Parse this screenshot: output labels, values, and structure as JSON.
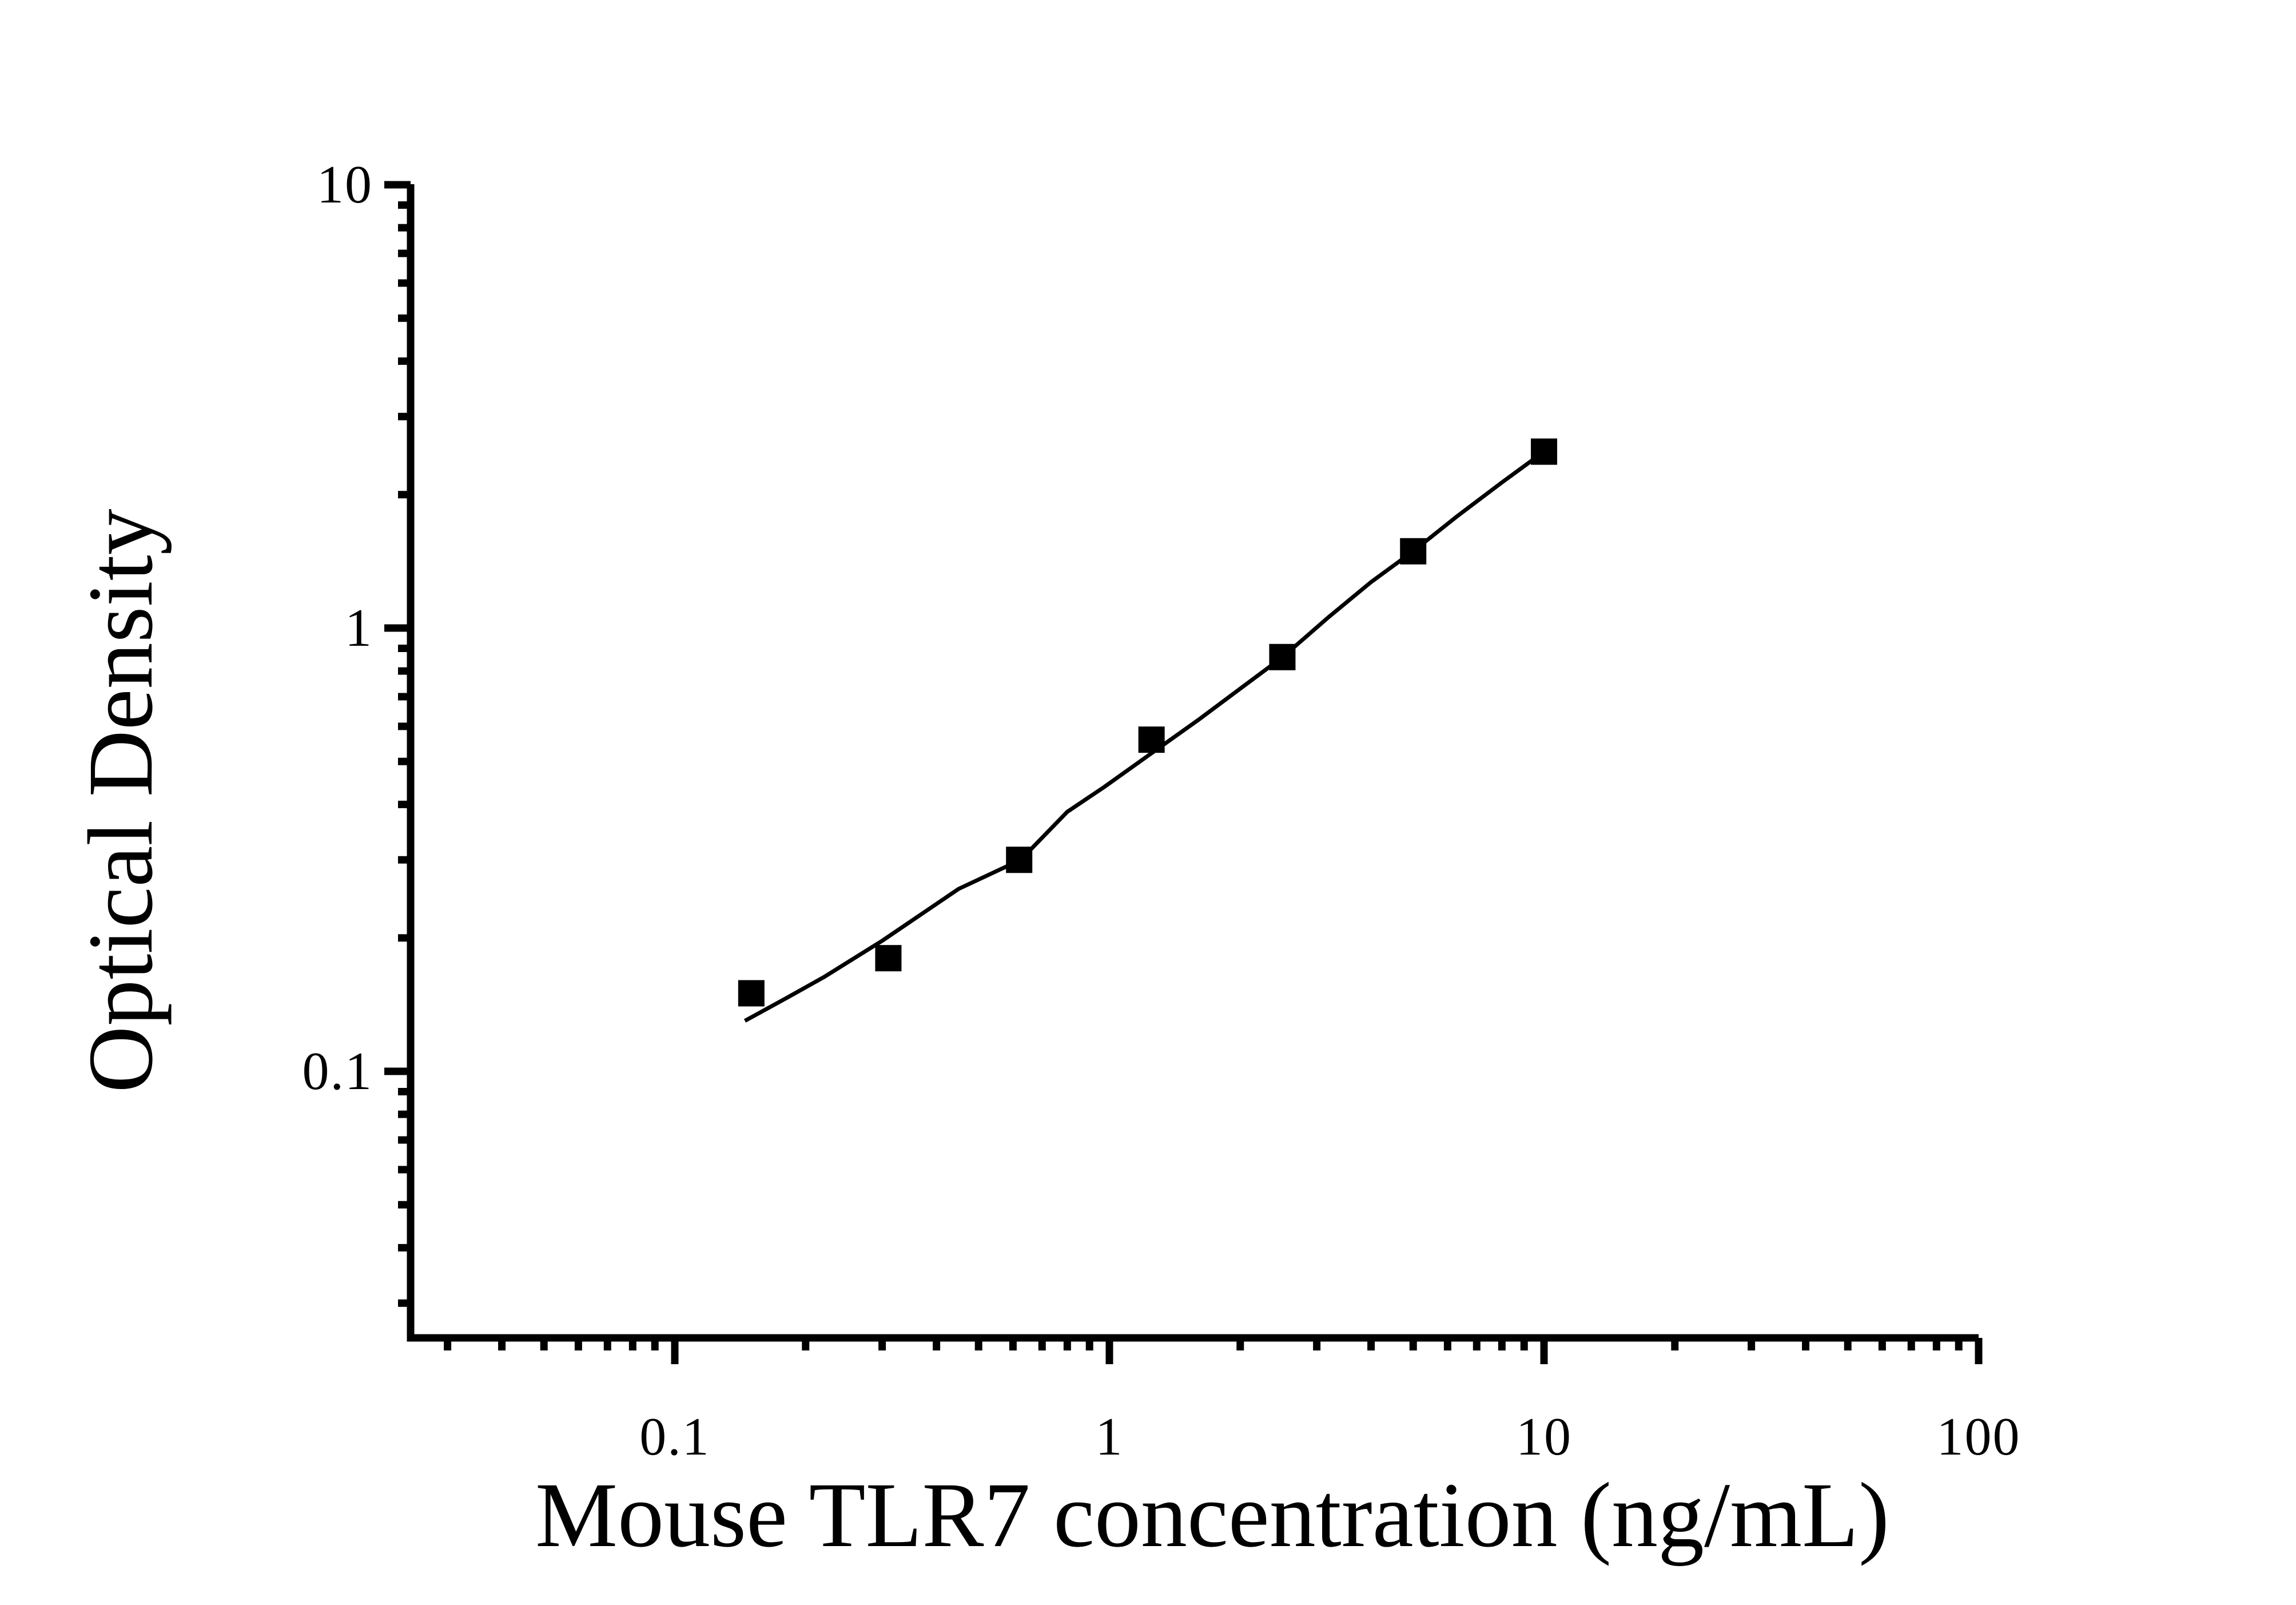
{
  "figure": {
    "background": "#ffffff",
    "axis_color": "#000000",
    "marker_color": "#000000",
    "curve_color": "#000000"
  },
  "chart_data": {
    "type": "scatter",
    "title": "",
    "xlabel": "Mouse TLR7 concentration (ng/mL)",
    "ylabel": "Optical Density",
    "x_scale": "log",
    "y_scale": "log",
    "xlim": [
      0.025,
      100
    ],
    "ylim": [
      0.025,
      10
    ],
    "grid": false,
    "legend": false,
    "x_major_ticks": [
      {
        "value": 0.1,
        "label": "0.1"
      },
      {
        "value": 1,
        "label": "1"
      },
      {
        "value": 10,
        "label": "10"
      },
      {
        "value": 100,
        "label": "100"
      }
    ],
    "y_major_ticks": [
      {
        "value": 10,
        "label": "10"
      },
      {
        "value": 1,
        "label": "1"
      },
      {
        "value": 0.1,
        "label": "0.1"
      }
    ],
    "series": [
      {
        "name": "standard-points",
        "kind": "scatter",
        "marker": "square",
        "color": "#000000",
        "x": [
          0.15,
          0.31,
          0.62,
          1.25,
          2.5,
          5,
          10
        ],
        "y": [
          0.15,
          0.18,
          0.3,
          0.56,
          0.86,
          1.49,
          2.5
        ]
      },
      {
        "name": "fit-curve",
        "kind": "line",
        "color": "#000000",
        "samples": [
          [
            0.145,
            0.13
          ],
          [
            0.18,
            0.146
          ],
          [
            0.22,
            0.163
          ],
          [
            0.3,
            0.197
          ],
          [
            0.45,
            0.258
          ],
          [
            0.625,
            0.3
          ],
          [
            0.8,
            0.385
          ],
          [
            0.97,
            0.437
          ],
          [
            1.25,
            0.522
          ],
          [
            1.6,
            0.62
          ],
          [
            2.0,
            0.73
          ],
          [
            2.5,
            0.859
          ],
          [
            3.2,
            1.06
          ],
          [
            4.0,
            1.27
          ],
          [
            5.0,
            1.49
          ],
          [
            6.3,
            1.785
          ],
          [
            8.0,
            2.13
          ],
          [
            10.0,
            2.5
          ]
        ]
      }
    ]
  }
}
